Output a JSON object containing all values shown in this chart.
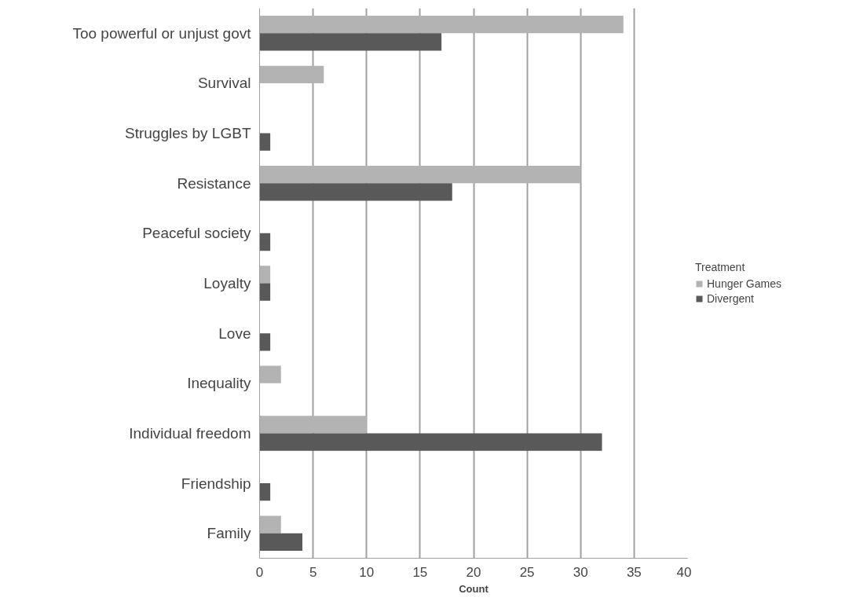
{
  "chart_data": {
    "type": "bar",
    "orientation": "horizontal",
    "xlabel": "Count",
    "legend_title": "Treatment",
    "legend": "right",
    "categories": [
      "Too powerful or unjust govt",
      "Survival",
      "Struggles by LGBT",
      "Resistance",
      "Peaceful society",
      "Loyalty",
      "Love",
      "Inequality",
      "Individual freedom",
      "Friendship",
      "Family"
    ],
    "series": [
      {
        "name": "Hunger Games",
        "color": "#b3b3b3",
        "values": [
          34,
          6,
          0,
          30,
          0,
          1,
          0,
          2,
          10,
          0,
          2
        ]
      },
      {
        "name": "Divergent",
        "color": "#595959",
        "values": [
          17,
          0,
          1,
          18,
          1,
          1,
          1,
          0,
          32,
          1,
          4
        ]
      }
    ],
    "xlim": [
      0,
      40
    ],
    "xticks": [
      0,
      5,
      10,
      15,
      20,
      25,
      30,
      35,
      40
    ],
    "grid": "x"
  }
}
